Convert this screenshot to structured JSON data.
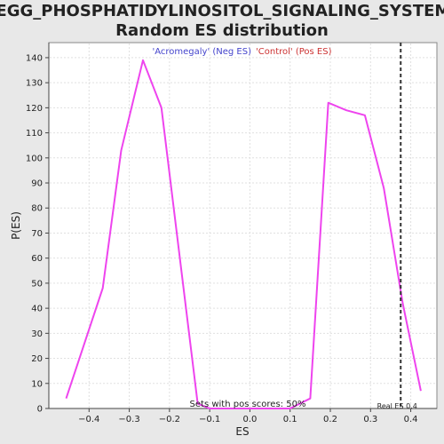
{
  "chart_data": {
    "type": "line",
    "title_line1": "KEGG_PHOSPHATIDYLINOSITOL_SIGNALING_SYSTEM:",
    "title_line2": "Random ES distribution",
    "xlabel": "ES",
    "ylabel": "P(ES)",
    "xlim": [
      -0.5,
      0.465
    ],
    "ylim": [
      0,
      146
    ],
    "xticks": [
      -0.4,
      -0.3,
      -0.2,
      -0.1,
      0.0,
      0.1,
      0.2,
      0.3,
      0.4
    ],
    "xtick_labels": [
      "−0.4",
      "−0.3",
      "−0.2",
      "−0.1",
      "0.0",
      "0.1",
      "0.2",
      "0.3",
      "0.4"
    ],
    "yticks": [
      0,
      10,
      20,
      30,
      40,
      50,
      60,
      70,
      80,
      90,
      100,
      110,
      120,
      130,
      140
    ],
    "grid": true,
    "legend": {
      "neg_label": "'Acromegaly' (Neg ES)",
      "pos_label": "'Control' (Pos ES)",
      "neg_color": "#4444cc",
      "pos_color": "#cc3333",
      "placement": "top-center"
    },
    "series": [
      {
        "color": "#ee44ee",
        "x": [
          -0.457,
          -0.366,
          -0.32,
          -0.266,
          -0.22,
          -0.13,
          -0.1,
          -0.05,
          0.0,
          0.05,
          0.1,
          0.15,
          0.195,
          0.24,
          0.286,
          0.333,
          0.38,
          0.425
        ],
        "y": [
          4,
          48,
          103,
          139,
          120,
          2,
          0,
          0,
          0,
          0,
          0,
          4,
          122,
          119,
          117,
          88,
          42,
          7
        ]
      }
    ],
    "real_es": {
      "value": 0.375,
      "label": "Real ES 0.4",
      "color": "#333333"
    },
    "footer_note": "Sets with pos scores: 50%"
  }
}
